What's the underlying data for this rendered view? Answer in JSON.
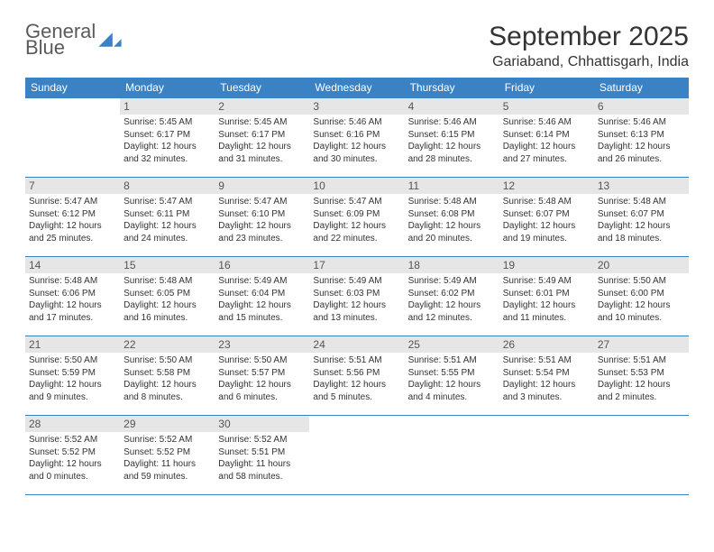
{
  "logo": {
    "word1": "General",
    "word2": "Blue",
    "triangle_color": "#3b82c4"
  },
  "title": "September 2025",
  "location": "Gariaband, Chhattisgarh, India",
  "colors": {
    "header_bg": "#3b82c4",
    "header_text": "#ffffff",
    "daynum_bg": "#e6e6e6",
    "daynum_text": "#555555",
    "body_text": "#333333",
    "rule": "#3b82c4",
    "page_bg": "#ffffff"
  },
  "fonts": {
    "title_pt": 30,
    "location_pt": 16,
    "dayhead_pt": 12,
    "daynum_pt": 12,
    "cell_pt": 10
  },
  "dayheaders": [
    "Sunday",
    "Monday",
    "Tuesday",
    "Wednesday",
    "Thursday",
    "Friday",
    "Saturday"
  ],
  "layout": {
    "columns": 7,
    "rows": 5,
    "first_weekday_index": 1
  },
  "days": [
    {
      "n": 1,
      "sunrise": "5:45 AM",
      "sunset": "6:17 PM",
      "daylight": "12 hours and 32 minutes."
    },
    {
      "n": 2,
      "sunrise": "5:45 AM",
      "sunset": "6:17 PM",
      "daylight": "12 hours and 31 minutes."
    },
    {
      "n": 3,
      "sunrise": "5:46 AM",
      "sunset": "6:16 PM",
      "daylight": "12 hours and 30 minutes."
    },
    {
      "n": 4,
      "sunrise": "5:46 AM",
      "sunset": "6:15 PM",
      "daylight": "12 hours and 28 minutes."
    },
    {
      "n": 5,
      "sunrise": "5:46 AM",
      "sunset": "6:14 PM",
      "daylight": "12 hours and 27 minutes."
    },
    {
      "n": 6,
      "sunrise": "5:46 AM",
      "sunset": "6:13 PM",
      "daylight": "12 hours and 26 minutes."
    },
    {
      "n": 7,
      "sunrise": "5:47 AM",
      "sunset": "6:12 PM",
      "daylight": "12 hours and 25 minutes."
    },
    {
      "n": 8,
      "sunrise": "5:47 AM",
      "sunset": "6:11 PM",
      "daylight": "12 hours and 24 minutes."
    },
    {
      "n": 9,
      "sunrise": "5:47 AM",
      "sunset": "6:10 PM",
      "daylight": "12 hours and 23 minutes."
    },
    {
      "n": 10,
      "sunrise": "5:47 AM",
      "sunset": "6:09 PM",
      "daylight": "12 hours and 22 minutes."
    },
    {
      "n": 11,
      "sunrise": "5:48 AM",
      "sunset": "6:08 PM",
      "daylight": "12 hours and 20 minutes."
    },
    {
      "n": 12,
      "sunrise": "5:48 AM",
      "sunset": "6:07 PM",
      "daylight": "12 hours and 19 minutes."
    },
    {
      "n": 13,
      "sunrise": "5:48 AM",
      "sunset": "6:07 PM",
      "daylight": "12 hours and 18 minutes."
    },
    {
      "n": 14,
      "sunrise": "5:48 AM",
      "sunset": "6:06 PM",
      "daylight": "12 hours and 17 minutes."
    },
    {
      "n": 15,
      "sunrise": "5:48 AM",
      "sunset": "6:05 PM",
      "daylight": "12 hours and 16 minutes."
    },
    {
      "n": 16,
      "sunrise": "5:49 AM",
      "sunset": "6:04 PM",
      "daylight": "12 hours and 15 minutes."
    },
    {
      "n": 17,
      "sunrise": "5:49 AM",
      "sunset": "6:03 PM",
      "daylight": "12 hours and 13 minutes."
    },
    {
      "n": 18,
      "sunrise": "5:49 AM",
      "sunset": "6:02 PM",
      "daylight": "12 hours and 12 minutes."
    },
    {
      "n": 19,
      "sunrise": "5:49 AM",
      "sunset": "6:01 PM",
      "daylight": "12 hours and 11 minutes."
    },
    {
      "n": 20,
      "sunrise": "5:50 AM",
      "sunset": "6:00 PM",
      "daylight": "12 hours and 10 minutes."
    },
    {
      "n": 21,
      "sunrise": "5:50 AM",
      "sunset": "5:59 PM",
      "daylight": "12 hours and 9 minutes."
    },
    {
      "n": 22,
      "sunrise": "5:50 AM",
      "sunset": "5:58 PM",
      "daylight": "12 hours and 8 minutes."
    },
    {
      "n": 23,
      "sunrise": "5:50 AM",
      "sunset": "5:57 PM",
      "daylight": "12 hours and 6 minutes."
    },
    {
      "n": 24,
      "sunrise": "5:51 AM",
      "sunset": "5:56 PM",
      "daylight": "12 hours and 5 minutes."
    },
    {
      "n": 25,
      "sunrise": "5:51 AM",
      "sunset": "5:55 PM",
      "daylight": "12 hours and 4 minutes."
    },
    {
      "n": 26,
      "sunrise": "5:51 AM",
      "sunset": "5:54 PM",
      "daylight": "12 hours and 3 minutes."
    },
    {
      "n": 27,
      "sunrise": "5:51 AM",
      "sunset": "5:53 PM",
      "daylight": "12 hours and 2 minutes."
    },
    {
      "n": 28,
      "sunrise": "5:52 AM",
      "sunset": "5:52 PM",
      "daylight": "12 hours and 0 minutes."
    },
    {
      "n": 29,
      "sunrise": "5:52 AM",
      "sunset": "5:52 PM",
      "daylight": "11 hours and 59 minutes."
    },
    {
      "n": 30,
      "sunrise": "5:52 AM",
      "sunset": "5:51 PM",
      "daylight": "11 hours and 58 minutes."
    }
  ],
  "labels": {
    "sunrise": "Sunrise: ",
    "sunset": "Sunset: ",
    "daylight": "Daylight: "
  }
}
